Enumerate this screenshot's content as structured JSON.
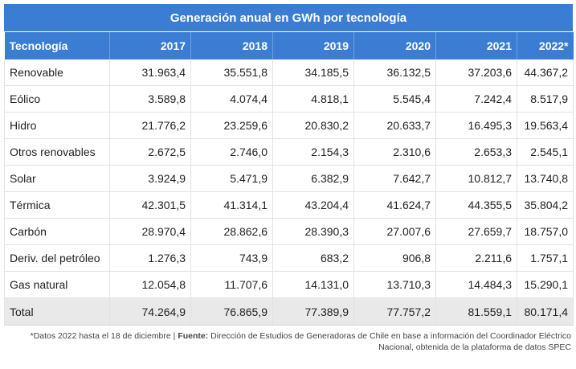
{
  "table": {
    "title": "Generación anual en GWh por tecnología",
    "headers": [
      "Tecnología",
      "2017",
      "2018",
      "2019",
      "2020",
      "2021",
      "2022*"
    ],
    "rows": [
      [
        "Renovable",
        "31.963,4",
        "35.551,8",
        "34.185,5",
        "36.132,5",
        "37.203,6",
        "44.367,2"
      ],
      [
        "Eólico",
        "3.589,8",
        "4.074,4",
        "4.818,1",
        "5.545,4",
        "7.242,4",
        "8.517,9"
      ],
      [
        "Hidro",
        "21.776,2",
        "23.259,6",
        "20.830,2",
        "20.633,7",
        "16.495,3",
        "19.563,4"
      ],
      [
        "Otros renovables",
        "2.672,5",
        "2.746,0",
        "2.154,3",
        "2.310,6",
        "2.653,3",
        "2.545,1"
      ],
      [
        "Solar",
        "3.924,9",
        "5.471,9",
        "6.382,9",
        "7.642,7",
        "10.812,7",
        "13.740,8"
      ],
      [
        "Térmica",
        "42.301,5",
        "41.314,1",
        "43.204,4",
        "41.624,7",
        "44.355,5",
        "35.804,2"
      ],
      [
        "Carbón",
        "28.970,4",
        "28.862,6",
        "28.390,3",
        "27.007,6",
        "27.659,7",
        "18.757,0"
      ],
      [
        "Deriv. del petróleo",
        "1.276,3",
        "743,9",
        "683,2",
        "906,8",
        "2.211,6",
        "1.757,1"
      ],
      [
        "Gas natural",
        "12.054,8",
        "11.707,6",
        "14.131,0",
        "13.710,3",
        "14.484,3",
        "15.290,1"
      ]
    ],
    "total": [
      "Total",
      "74.264,9",
      "76.865,9",
      "77.389,9",
      "77.757,2",
      "81.559,1",
      "80.171,4"
    ]
  },
  "footnote": {
    "prefix": "*Datos 2022 hasta el 18 de diciembre | ",
    "source_label": "Fuente:",
    "source_text": " Dirección de Estudios de Generadoras de Chile en base a información del Coordinador Eléctrico Nacional, obtenida de la plataforma de datos SPEC"
  },
  "colors": {
    "header_blue": "#3b7dd3",
    "total_row_bg": "#e9e9e9",
    "grid_line": "#e2e2e2"
  }
}
